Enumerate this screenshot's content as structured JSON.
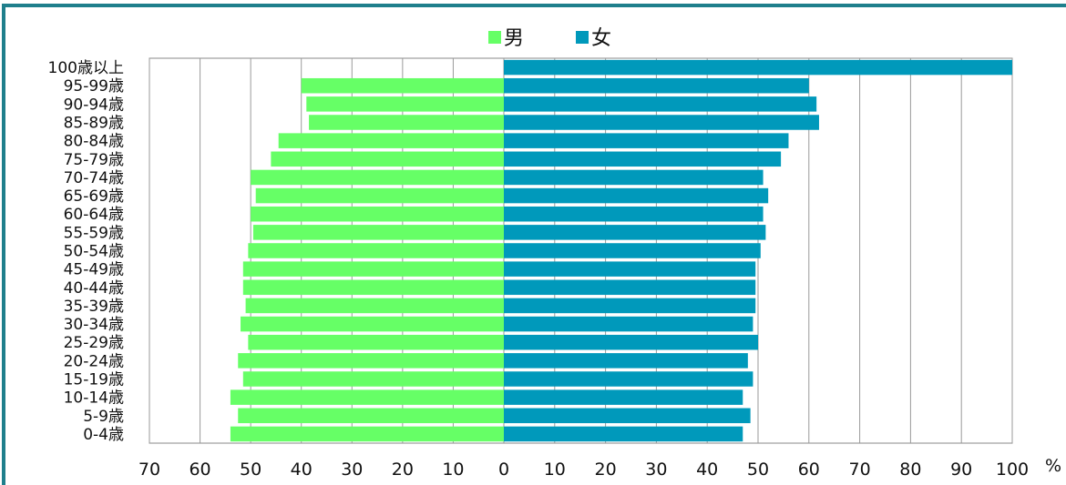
{
  "chart_data": {
    "type": "bar",
    "orientation": "horizontal",
    "layout": "diverging",
    "categories": [
      "100歳以上",
      "95-99歳",
      "90-94歳",
      "85-89歳",
      "80-84歳",
      "75-79歳",
      "70-74歳",
      "65-69歳",
      "60-64歳",
      "55-59歳",
      "50-54歳",
      "45-49歳",
      "40-44歳",
      "35-39歳",
      "30-34歳",
      "25-29歳",
      "20-24歳",
      "15-19歳",
      "10-14歳",
      "5-9歳",
      "0-4歳"
    ],
    "series": [
      {
        "name": "男",
        "color": "#66ff66",
        "side": "left",
        "values": [
          0,
          40,
          39,
          38.5,
          44.5,
          46,
          50,
          49,
          50,
          49.5,
          50.5,
          51.5,
          51.5,
          51,
          52,
          50.5,
          52.5,
          51.5,
          54,
          52.5,
          54
        ]
      },
      {
        "name": "女",
        "color": "#0099bb",
        "side": "right",
        "values": [
          100,
          60,
          61.5,
          62,
          56,
          54.5,
          51,
          52,
          51,
          51.5,
          50.5,
          49.5,
          49.5,
          49.5,
          49,
          50,
          48,
          49,
          47,
          48.5,
          47
        ]
      }
    ],
    "left_ticks": [
      "70",
      "60",
      "50",
      "40",
      "30",
      "20",
      "10",
      "0"
    ],
    "right_ticks": [
      "10",
      "20",
      "30",
      "40",
      "50",
      "60",
      "70",
      "80",
      "90",
      "100"
    ],
    "left_range": [
      0,
      70
    ],
    "right_range": [
      0,
      100
    ],
    "unit_label": "%",
    "legend_position": "top-center",
    "grid": true,
    "frame_color": "#1f7f8c"
  }
}
